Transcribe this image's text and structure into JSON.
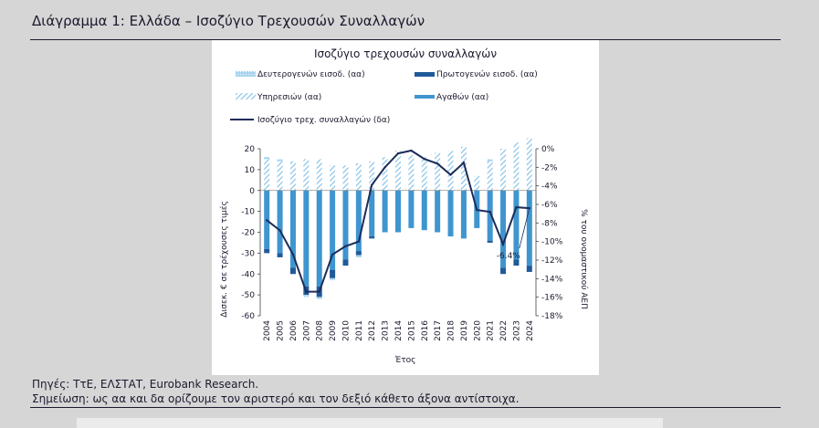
{
  "figure": {
    "title": "Διάγραμμα 1: Ελλάδα – Ισοζύγιο Τρεχουσών Συναλλαγών",
    "sources": "Πηγές: ΤτΕ, ΕΛΣΤΑΤ, Eurobank Research.",
    "note": "Σημείωση: ως αα και δα ορίζουμε τον αριστερό και τον δεξιό κάθετο άξονα αντίστοιχα."
  },
  "colors": {
    "page_bg": "#d6d6d6",
    "services": "#7fbfe6",
    "goods": "#3f95cf",
    "secondary_income": "#a8d3ef",
    "primary_income": "#1f5a99",
    "line": "#1c2c5a",
    "text": "#1a1a2e"
  },
  "chart_data": {
    "type": "bar",
    "title": "Ισοζύγιο τρεχουσών συναλλαγών",
    "xlabel": "Έτος",
    "ylabel": "Δισεκ. € σε τρέχουσες τιμές",
    "y2label": "% του ονομαστικού ΑΕΠ",
    "ylim": [
      -60,
      20
    ],
    "y2lim": [
      -18,
      0
    ],
    "yticks": [
      "20",
      "10",
      "0",
      "-10",
      "-20",
      "-30",
      "-40",
      "-50",
      "-60"
    ],
    "y2ticks": [
      "0%",
      "-2%",
      "-4%",
      "-6%",
      "-8%",
      "-10%",
      "-12%",
      "-14%",
      "-16%",
      "-18%"
    ],
    "categories": [
      "2004",
      "2005",
      "2006",
      "2007",
      "2008",
      "2009",
      "2010",
      "2011",
      "2012",
      "2013",
      "2014",
      "2015",
      "2016",
      "2017",
      "2018",
      "2019",
      "2020",
      "2021",
      "2022",
      "2023",
      "2024"
    ],
    "legend": {
      "secondary": "Δευτερογενών εισοδ. (αα)",
      "primary": "Πρωτογενών εισοδ. (αα)",
      "services": "Υπηρεσιών (αα)",
      "goods": "Αγαθών (αα)",
      "line": "Ισοζύγιο τρεχ. συναλλαγών (δα)"
    },
    "series": [
      {
        "name": "Υπηρεσιών (αα)",
        "values": [
          15,
          14,
          14,
          15,
          15,
          12,
          12,
          13,
          14,
          16,
          19,
          17,
          16,
          18,
          19,
          21,
          7,
          14,
          20,
          23,
          25
        ]
      },
      {
        "name": "Αγαθών (αα)",
        "values": [
          -28,
          -30,
          -37,
          -46,
          -46,
          -38,
          -33,
          -29,
          -22,
          -20,
          -20,
          -18,
          -19,
          -20,
          -22,
          -23,
          -18,
          -24,
          -37,
          -33,
          -36
        ]
      },
      {
        "name": "Πρωτογενών εισοδ. (αα)",
        "values": [
          -2,
          -2,
          -3,
          -4,
          -5,
          -4,
          -3,
          -2,
          -1,
          0,
          0,
          0,
          0,
          0,
          0,
          0,
          0,
          -1,
          -3,
          -3,
          -3
        ]
      },
      {
        "name": "Δευτερογενών εισοδ. (αα)",
        "values": [
          1,
          1,
          0,
          -1,
          -1,
          -1,
          0,
          -1,
          0,
          0,
          0,
          0,
          0,
          0,
          0,
          0,
          0,
          1,
          0,
          0,
          0
        ]
      },
      {
        "name": "Ισοζύγιο τρεχ. συναλλαγών (δα)",
        "axis": "right",
        "values": [
          -7.7,
          -8.8,
          -11.4,
          -15.4,
          -15.4,
          -11.4,
          -10.5,
          -10.0,
          -3.9,
          -2.0,
          -0.5,
          -0.2,
          -1.1,
          -1.6,
          -2.8,
          -1.5,
          -6.6,
          -6.8,
          -10.3,
          -6.3,
          -6.4
        ]
      }
    ],
    "annotation": {
      "text": "-6.4%",
      "category": "2024",
      "value": -6.4
    }
  }
}
